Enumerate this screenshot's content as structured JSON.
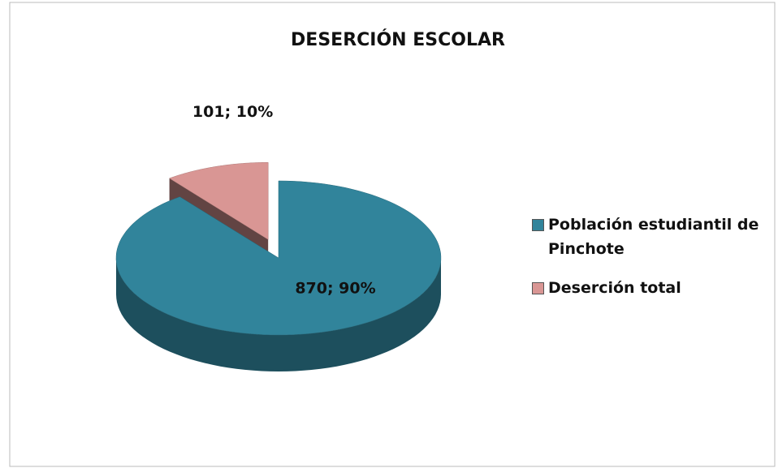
{
  "chart_data": {
    "type": "pie3d",
    "title": "DESERCIÓN ESCOLAR",
    "categories": [
      "Población estudiantil de Pinchote",
      "Deserción total"
    ],
    "values": [
      870,
      101
    ],
    "value_labels": [
      "870; 90%",
      "101; 10%"
    ],
    "colors": [
      "#31849b",
      "#d99694"
    ],
    "legend": "right"
  }
}
